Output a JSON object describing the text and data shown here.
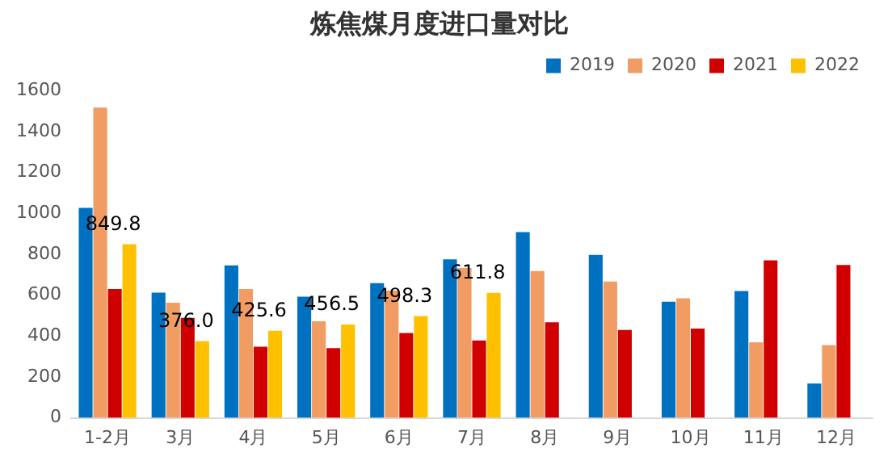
{
  "chart_data": {
    "type": "bar",
    "title": "炼焦煤月度进口量对比",
    "categories": [
      "1-2月",
      "3月",
      "4月",
      "5月",
      "6月",
      "7月",
      "8月",
      "9月",
      "10月",
      "11月",
      "12月"
    ],
    "series": [
      {
        "name": "2019",
        "color": "#0070c0",
        "values": [
          1027,
          612,
          746,
          593,
          659,
          775,
          909,
          797,
          568,
          620,
          168
        ]
      },
      {
        "name": "2020",
        "color": "#f09c62",
        "values": [
          1518,
          563,
          630,
          472,
          622,
          733,
          718,
          667,
          585,
          370,
          356
        ]
      },
      {
        "name": "2021",
        "color": "#d00000",
        "values": [
          630,
          489,
          348,
          341,
          415,
          378,
          467,
          430,
          437,
          770,
          748
        ]
      },
      {
        "name": "2022",
        "color": "#ffc000",
        "values": [
          849.8,
          376.0,
          425.6,
          456.5,
          498.3,
          611.8,
          null,
          null,
          null,
          null,
          null
        ],
        "value_labels": [
          "849.8",
          "376.0",
          "425.6",
          "456.5",
          "498.3",
          "611.8",
          null,
          null,
          null,
          null,
          null
        ]
      }
    ],
    "ylim": [
      0,
      1600
    ],
    "yticks": [
      0,
      200,
      400,
      600,
      800,
      1000,
      1200,
      1400,
      1600
    ],
    "grid": false,
    "legend": "top right"
  }
}
